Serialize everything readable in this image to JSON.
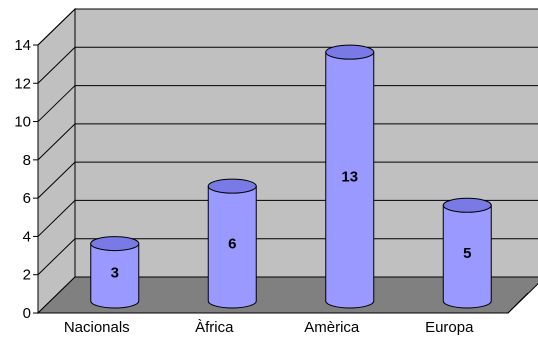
{
  "chart_data": {
    "type": "bar",
    "style": "3d-cylinder",
    "categories": [
      "Nacionals",
      "Àfrica",
      "Amèrica",
      "Europa"
    ],
    "values": [
      3,
      6,
      13,
      5
    ],
    "data_labels": [
      "3",
      "6",
      "13",
      "5"
    ],
    "title": "",
    "xlabel": "",
    "ylabel": "",
    "ylim": [
      0,
      14
    ],
    "yticks": [
      "0",
      "2",
      "4",
      "6",
      "8",
      "10",
      "12",
      "14"
    ],
    "grid": true,
    "legend": "none",
    "colors": {
      "bar_fill": "#9999ff",
      "bar_top": "#7a7ae6",
      "back_wall": "#c0c0c0",
      "side_wall": "#c0c0c0",
      "floor": "#808080"
    }
  }
}
